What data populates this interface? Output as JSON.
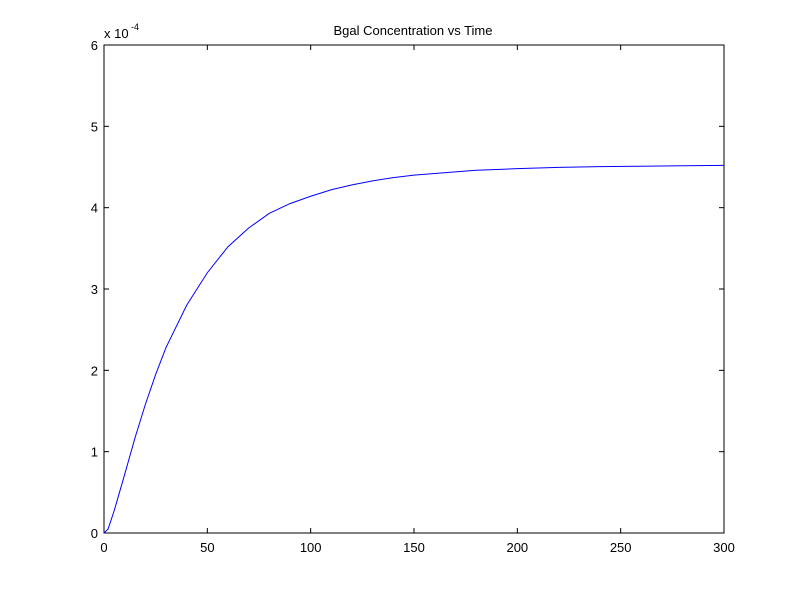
{
  "chart_data": {
    "type": "line",
    "title": "Bgal Concentration vs Time",
    "xlabel": "",
    "ylabel": "",
    "xlim": [
      0,
      300
    ],
    "ylim": [
      0,
      6
    ],
    "y_multiplier": {
      "base": "x 10",
      "exponent": "-4"
    },
    "xticks": [
      0,
      50,
      100,
      150,
      200,
      250,
      300
    ],
    "xtick_labels": [
      "0",
      "50",
      "100",
      "150",
      "200",
      "250",
      "300"
    ],
    "yticks": [
      0,
      1,
      2,
      3,
      4,
      5,
      6
    ],
    "ytick_labels": [
      "0",
      "1",
      "2",
      "3",
      "4",
      "5",
      "6"
    ],
    "grid": false,
    "series": [
      {
        "color": "#0000ff",
        "x": [
          0,
          2,
          5,
          10,
          15,
          20,
          25,
          30,
          40,
          50,
          60,
          70,
          80,
          90,
          100,
          110,
          120,
          130,
          140,
          150,
          160,
          170,
          180,
          190,
          200,
          220,
          240,
          260,
          280,
          300
        ],
        "y": [
          0,
          0.05,
          0.28,
          0.72,
          1.17,
          1.58,
          1.95,
          2.28,
          2.8,
          3.2,
          3.52,
          3.75,
          3.93,
          4.05,
          4.14,
          4.22,
          4.28,
          4.33,
          4.37,
          4.4,
          4.42,
          4.44,
          4.46,
          4.47,
          4.48,
          4.495,
          4.505,
          4.51,
          4.515,
          4.52
        ]
      }
    ]
  }
}
